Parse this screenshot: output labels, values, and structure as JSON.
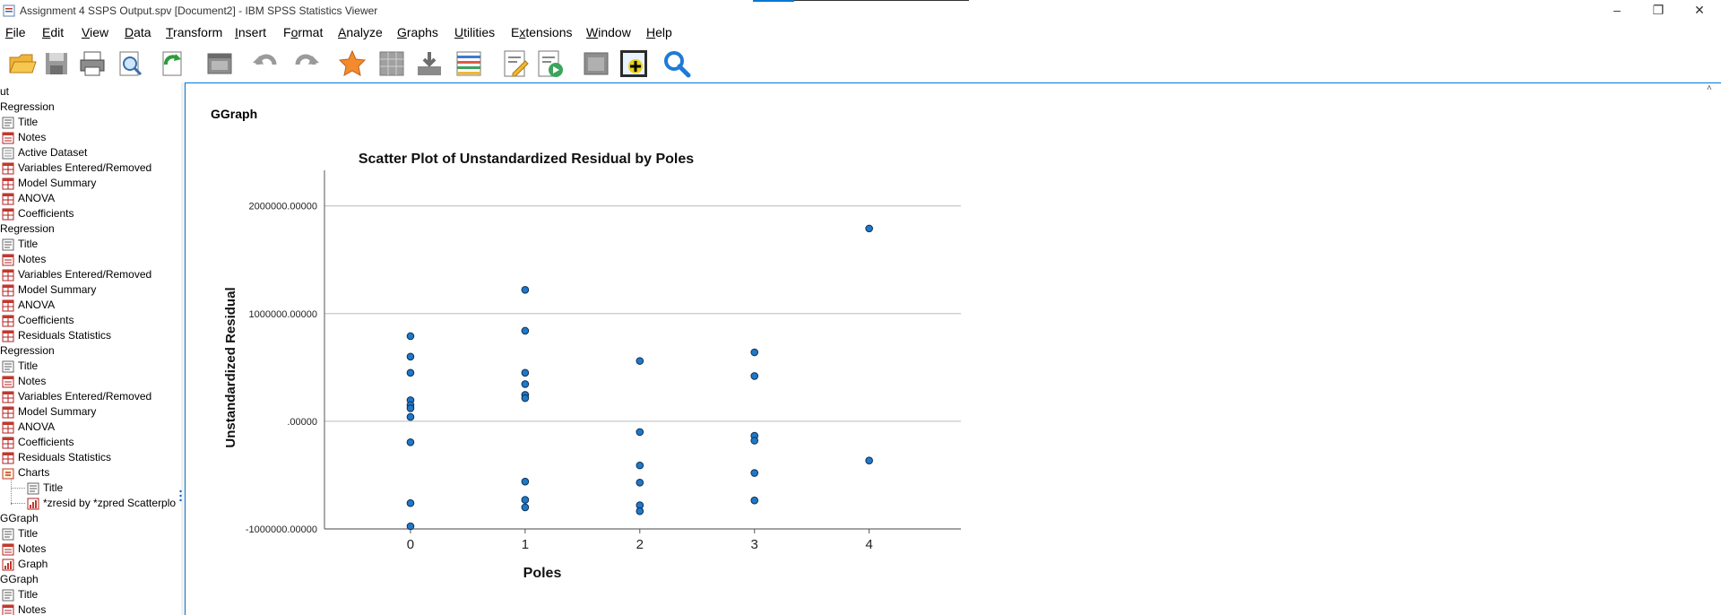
{
  "window": {
    "title": "Assignment 4 SSPS Output.spv [Document2] - IBM SPSS Statistics Viewer",
    "controls": {
      "minimize": "–",
      "maximize": "❐",
      "close": "✕"
    }
  },
  "menu": [
    {
      "label": "File",
      "u": "F",
      "rest": "ile"
    },
    {
      "label": "Edit",
      "u": "E",
      "rest": "dit"
    },
    {
      "label": "View",
      "u": "V",
      "rest": "iew"
    },
    {
      "label": "Data",
      "u": "D",
      "rest": "ata"
    },
    {
      "label": "Transform",
      "u": "T",
      "rest": "ransform"
    },
    {
      "label": "Insert",
      "u": "I",
      "rest": "nsert"
    },
    {
      "label": "Format",
      "pre": "F",
      "u": "o",
      "rest": "rmat"
    },
    {
      "label": "Analyze",
      "u": "A",
      "rest": "nalyze"
    },
    {
      "label": "Graphs",
      "u": "G",
      "rest": "raphs"
    },
    {
      "label": "Utilities",
      "u": "U",
      "rest": "tilities"
    },
    {
      "label": "Extensions",
      "u": "x",
      "pre": "E",
      "rest": "tensions"
    },
    {
      "label": "Window",
      "u": "W",
      "rest": "indow"
    },
    {
      "label": "Help",
      "u": "H",
      "rest": "elp"
    }
  ],
  "toolbar": [
    "open-icon",
    "save-icon",
    "print-icon",
    "print-preview-icon",
    "export-icon",
    "recall-dialog-icon",
    "undo-icon",
    "redo-icon",
    "goto-data-icon",
    "goto-case-icon",
    "goto-variable-icon",
    "variables-icon",
    "output-title-icon",
    "run-script-icon",
    "designate-window-icon",
    "insert-chart-icon",
    "search-icon"
  ],
  "outline": {
    "items": [
      {
        "label": "ut",
        "icon": "none",
        "indent": 0
      },
      {
        "label": "Regression",
        "icon": "none",
        "indent": 0
      },
      {
        "label": "Title",
        "icon": "title",
        "indent": 1
      },
      {
        "label": "Notes",
        "icon": "notes",
        "indent": 1
      },
      {
        "label": "Active Dataset",
        "icon": "log",
        "indent": 1
      },
      {
        "label": "Variables Entered/Removed",
        "icon": "table",
        "indent": 1
      },
      {
        "label": "Model Summary",
        "icon": "table",
        "indent": 1
      },
      {
        "label": "ANOVA",
        "icon": "table",
        "indent": 1
      },
      {
        "label": "Coefficients",
        "icon": "table",
        "indent": 1
      },
      {
        "label": "Regression",
        "icon": "none",
        "indent": 0
      },
      {
        "label": "Title",
        "icon": "title",
        "indent": 1
      },
      {
        "label": "Notes",
        "icon": "notes",
        "indent": 1
      },
      {
        "label": "Variables Entered/Removed",
        "icon": "table",
        "indent": 1
      },
      {
        "label": "Model Summary",
        "icon": "table",
        "indent": 1
      },
      {
        "label": "ANOVA",
        "icon": "table",
        "indent": 1
      },
      {
        "label": "Coefficients",
        "icon": "table",
        "indent": 1
      },
      {
        "label": "Residuals Statistics",
        "icon": "table",
        "indent": 1
      },
      {
        "label": "Regression",
        "icon": "none",
        "indent": 0
      },
      {
        "label": "Title",
        "icon": "title",
        "indent": 1
      },
      {
        "label": "Notes",
        "icon": "notes",
        "indent": 1
      },
      {
        "label": "Variables Entered/Removed",
        "icon": "table",
        "indent": 1
      },
      {
        "label": "Model Summary",
        "icon": "table",
        "indent": 1
      },
      {
        "label": "ANOVA",
        "icon": "table",
        "indent": 1
      },
      {
        "label": "Coefficients",
        "icon": "table",
        "indent": 1
      },
      {
        "label": "Residuals Statistics",
        "icon": "table",
        "indent": 1
      },
      {
        "label": "Charts",
        "icon": "folder",
        "indent": 1
      },
      {
        "label": "Title",
        "icon": "title",
        "indent": 2
      },
      {
        "label": "*zresid by *zpred Scatterplo",
        "icon": "chart",
        "indent": 2
      },
      {
        "label": "GGraph",
        "icon": "none",
        "indent": 0
      },
      {
        "label": "Title",
        "icon": "title",
        "indent": 1
      },
      {
        "label": "Notes",
        "icon": "notes",
        "indent": 1
      },
      {
        "label": "Graph",
        "icon": "chart",
        "indent": 1
      },
      {
        "label": "GGraph",
        "icon": "none",
        "indent": 0
      },
      {
        "label": "Title",
        "icon": "title",
        "indent": 1
      },
      {
        "label": "Notes",
        "icon": "notes",
        "indent": 1
      }
    ]
  },
  "content": {
    "heading": "GGraph"
  },
  "chart_data": {
    "type": "scatter",
    "title": "Scatter Plot of Unstandardized Residual by Poles",
    "xlabel": "Poles",
    "ylabel": "Unstandardized Residual",
    "x_ticks": [
      "0",
      "1",
      "2",
      "3",
      "4"
    ],
    "y_ticks": [
      {
        "value": 2000000,
        "label": "2000000.00000"
      },
      {
        "value": 1000000,
        "label": "1000000.00000"
      },
      {
        "value": 0,
        "label": ".00000"
      },
      {
        "value": -1000000,
        "label": "-1000000.00000"
      }
    ],
    "xlim": [
      -0.75,
      4.8
    ],
    "ylim": [
      -1000000,
      2330000
    ],
    "grid": "horizontal",
    "marker_color": "#1f78c8",
    "points": [
      {
        "x": 0,
        "y": 790000
      },
      {
        "x": 0,
        "y": 600000
      },
      {
        "x": 0,
        "y": 450000
      },
      {
        "x": 0,
        "y": 195000
      },
      {
        "x": 0,
        "y": 150000
      },
      {
        "x": 0,
        "y": 120000
      },
      {
        "x": 0,
        "y": 40000
      },
      {
        "x": 0,
        "y": -195000
      },
      {
        "x": 0,
        "y": -760000
      },
      {
        "x": 0,
        "y": -975000
      },
      {
        "x": 1,
        "y": 1220000
      },
      {
        "x": 1,
        "y": 840000
      },
      {
        "x": 1,
        "y": 450000
      },
      {
        "x": 1,
        "y": 345000
      },
      {
        "x": 1,
        "y": 245000
      },
      {
        "x": 1,
        "y": 215000
      },
      {
        "x": 1,
        "y": -560000
      },
      {
        "x": 1,
        "y": -730000
      },
      {
        "x": 1,
        "y": -800000
      },
      {
        "x": 2,
        "y": 560000
      },
      {
        "x": 2,
        "y": -100000
      },
      {
        "x": 2,
        "y": -410000
      },
      {
        "x": 2,
        "y": -570000
      },
      {
        "x": 2,
        "y": -780000
      },
      {
        "x": 2,
        "y": -835000
      },
      {
        "x": 3,
        "y": 640000
      },
      {
        "x": 3,
        "y": 420000
      },
      {
        "x": 3,
        "y": -135000
      },
      {
        "x": 3,
        "y": -180000
      },
      {
        "x": 3,
        "y": -480000
      },
      {
        "x": 3,
        "y": -735000
      },
      {
        "x": 4,
        "y": 1790000
      },
      {
        "x": 4,
        "y": -365000
      }
    ]
  }
}
